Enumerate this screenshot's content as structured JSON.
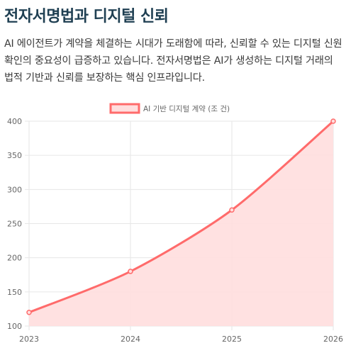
{
  "header": {
    "title": "전자서명법과 디지털 신뢰",
    "description": "AI 에이전트가 계약을 체결하는 시대가 도래함에 따라, 신뢰할 수 있는 디지털 신원 확인의 중요성이 급증하고 있습니다. 전자서명법은 AI가 생성하는 디지털 거래의 법적 기반과 신뢰를 보장하는 핵심 인프라입니다."
  },
  "colors": {
    "title": "#1f3f52",
    "line": "#ff6b6b",
    "fill": "#ffdede",
    "grid": "#e6e6e6"
  },
  "chart_data": {
    "type": "area",
    "x": [
      "2023",
      "2024",
      "2025",
      "2026"
    ],
    "series": [
      {
        "name": "AI 기반 디지털 계약 (조 건)",
        "values": [
          120,
          180,
          270,
          400
        ]
      }
    ],
    "ylim": [
      100,
      400
    ],
    "yticks": [
      100,
      150,
      200,
      250,
      300,
      350,
      400
    ],
    "grid": true,
    "legend": "top-center",
    "smooth": true
  }
}
